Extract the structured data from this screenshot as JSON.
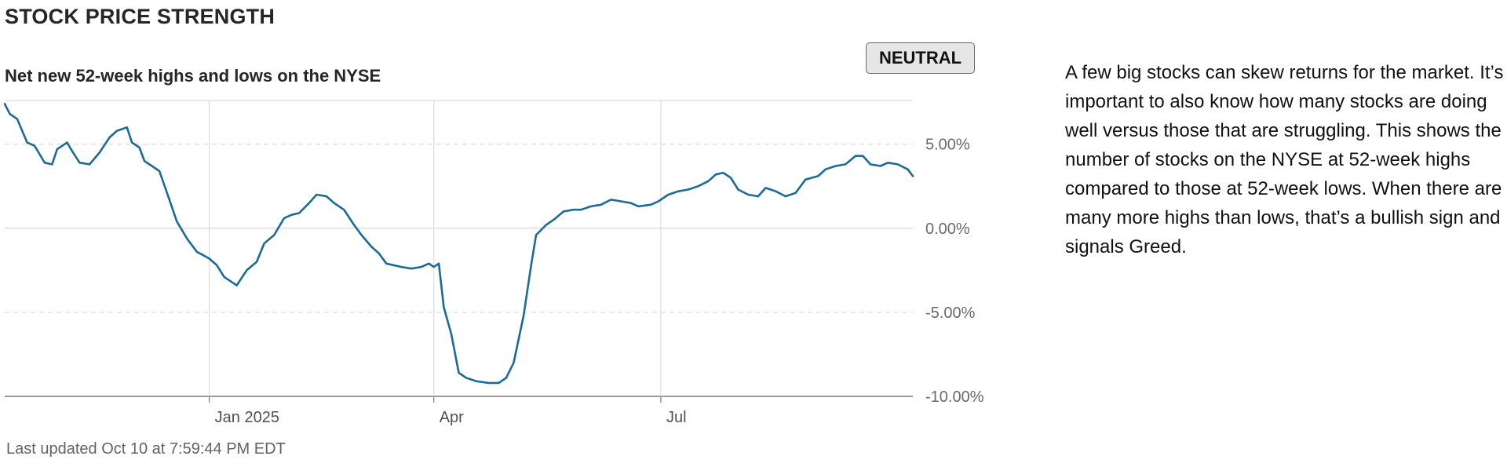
{
  "header": {
    "title": "STOCK PRICE STRENGTH",
    "subtitle": "Net new 52-week highs and lows on the NYSE",
    "rating": "NEUTRAL"
  },
  "description": "A few big stocks can skew returns for the market. It’s important to also know how many stocks are doing well versus those that are struggling. This shows the number of stocks on the NYSE at 52-week highs compared to those at 52-week lows. When there are many more highs than lows, that’s a bullish sign and signals Greed.",
  "footer": {
    "last_updated": "Last updated Oct 10 at 7:59:44 PM EDT"
  },
  "colors": {
    "line": "#1a6b9a",
    "grid": "#dcdcdc",
    "axis": "#7a7a7a",
    "badge_bg": "#e6e6e6"
  },
  "chart_data": {
    "type": "line",
    "ylim": [
      -10,
      7.6
    ],
    "y_ticks": [
      5,
      0,
      -5,
      -10
    ],
    "y_tick_labels": [
      "5.00%",
      "0.00%",
      "-5.00%",
      "-10.00%"
    ],
    "x_ticks": [
      {
        "date": "2025-01-01",
        "label": "Jan 2025"
      },
      {
        "date": "2025-04-01",
        "label": "Apr"
      },
      {
        "date": "2025-07-01",
        "label": "Jul"
      }
    ],
    "xlim": [
      "2024-10-11",
      "2025-10-10"
    ],
    "grid": {
      "horizontal": true,
      "vertical": true
    },
    "series": [
      {
        "values": [
          [
            "2024-10-11",
            7.4
          ],
          [
            "2024-10-13",
            6.8
          ],
          [
            "2024-10-16",
            6.5
          ],
          [
            "2024-10-20",
            5.1
          ],
          [
            "2024-10-23",
            4.9
          ],
          [
            "2024-10-25",
            4.4
          ],
          [
            "2024-10-27",
            3.9
          ],
          [
            "2024-10-30",
            3.8
          ],
          [
            "2024-11-01",
            4.7
          ],
          [
            "2024-11-05",
            5.1
          ],
          [
            "2024-11-07",
            4.6
          ],
          [
            "2024-11-10",
            3.9
          ],
          [
            "2024-11-14",
            3.8
          ],
          [
            "2024-11-18",
            4.5
          ],
          [
            "2024-11-22",
            5.4
          ],
          [
            "2024-11-25",
            5.8
          ],
          [
            "2024-11-29",
            6.0
          ],
          [
            "2024-12-01",
            5.1
          ],
          [
            "2024-12-04",
            4.8
          ],
          [
            "2024-12-06",
            4.0
          ],
          [
            "2024-12-09",
            3.7
          ],
          [
            "2024-12-12",
            3.4
          ],
          [
            "2024-12-16",
            1.7
          ],
          [
            "2024-12-19",
            0.4
          ],
          [
            "2024-12-23",
            -0.6
          ],
          [
            "2024-12-27",
            -1.4
          ],
          [
            "2025-01-01",
            -1.8
          ],
          [
            "2025-01-04",
            -2.2
          ],
          [
            "2025-01-07",
            -2.9
          ],
          [
            "2025-01-12",
            -3.4
          ],
          [
            "2025-01-16",
            -2.5
          ],
          [
            "2025-01-20",
            -2.0
          ],
          [
            "2025-01-23",
            -0.9
          ],
          [
            "2025-01-27",
            -0.4
          ],
          [
            "2025-01-31",
            0.6
          ],
          [
            "2025-02-03",
            0.8
          ],
          [
            "2025-02-06",
            0.9
          ],
          [
            "2025-02-10",
            1.5
          ],
          [
            "2025-02-13",
            2.0
          ],
          [
            "2025-02-17",
            1.9
          ],
          [
            "2025-02-20",
            1.5
          ],
          [
            "2025-02-24",
            1.1
          ],
          [
            "2025-02-28",
            0.2
          ],
          [
            "2025-03-03",
            -0.4
          ],
          [
            "2025-03-07",
            -1.1
          ],
          [
            "2025-03-10",
            -1.5
          ],
          [
            "2025-03-13",
            -2.1
          ],
          [
            "2025-03-19",
            -2.3
          ],
          [
            "2025-03-23",
            -2.4
          ],
          [
            "2025-03-27",
            -2.3
          ],
          [
            "2025-03-30",
            -2.1
          ],
          [
            "2025-04-01",
            -2.3
          ],
          [
            "2025-04-03",
            -2.1
          ],
          [
            "2025-04-05",
            -4.7
          ],
          [
            "2025-04-08",
            -6.3
          ],
          [
            "2025-04-11",
            -8.6
          ],
          [
            "2025-04-14",
            -8.9
          ],
          [
            "2025-04-18",
            -9.1
          ],
          [
            "2025-04-23",
            -9.2
          ],
          [
            "2025-04-27",
            -9.2
          ],
          [
            "2025-04-30",
            -8.9
          ],
          [
            "2025-05-03",
            -8.0
          ],
          [
            "2025-05-07",
            -5.2
          ],
          [
            "2025-05-10",
            -2.2
          ],
          [
            "2025-05-12",
            -0.4
          ],
          [
            "2025-05-16",
            0.2
          ],
          [
            "2025-05-19",
            0.5
          ],
          [
            "2025-05-23",
            1.0
          ],
          [
            "2025-05-27",
            1.1
          ],
          [
            "2025-05-30",
            1.1
          ],
          [
            "2025-06-03",
            1.3
          ],
          [
            "2025-06-07",
            1.4
          ],
          [
            "2025-06-11",
            1.7
          ],
          [
            "2025-06-15",
            1.6
          ],
          [
            "2025-06-19",
            1.5
          ],
          [
            "2025-06-22",
            1.3
          ],
          [
            "2025-06-27",
            1.4
          ],
          [
            "2025-06-30",
            1.6
          ],
          [
            "2025-07-04",
            2.0
          ],
          [
            "2025-07-08",
            2.2
          ],
          [
            "2025-07-12",
            2.3
          ],
          [
            "2025-07-16",
            2.5
          ],
          [
            "2025-07-20",
            2.8
          ],
          [
            "2025-07-23",
            3.2
          ],
          [
            "2025-07-26",
            3.3
          ],
          [
            "2025-07-29",
            3.0
          ],
          [
            "2025-08-01",
            2.3
          ],
          [
            "2025-08-05",
            2.0
          ],
          [
            "2025-08-09",
            1.9
          ],
          [
            "2025-08-12",
            2.4
          ],
          [
            "2025-08-16",
            2.2
          ],
          [
            "2025-08-20",
            1.9
          ],
          [
            "2025-08-24",
            2.1
          ],
          [
            "2025-08-28",
            2.9
          ],
          [
            "2025-09-02",
            3.1
          ],
          [
            "2025-09-05",
            3.5
          ],
          [
            "2025-09-09",
            3.7
          ],
          [
            "2025-09-13",
            3.8
          ],
          [
            "2025-09-17",
            4.3
          ],
          [
            "2025-09-20",
            4.3
          ],
          [
            "2025-09-23",
            3.8
          ],
          [
            "2025-09-27",
            3.7
          ],
          [
            "2025-09-30",
            3.9
          ],
          [
            "2025-10-04",
            3.8
          ],
          [
            "2025-10-08",
            3.5
          ],
          [
            "2025-10-10",
            3.1
          ]
        ]
      }
    ]
  }
}
